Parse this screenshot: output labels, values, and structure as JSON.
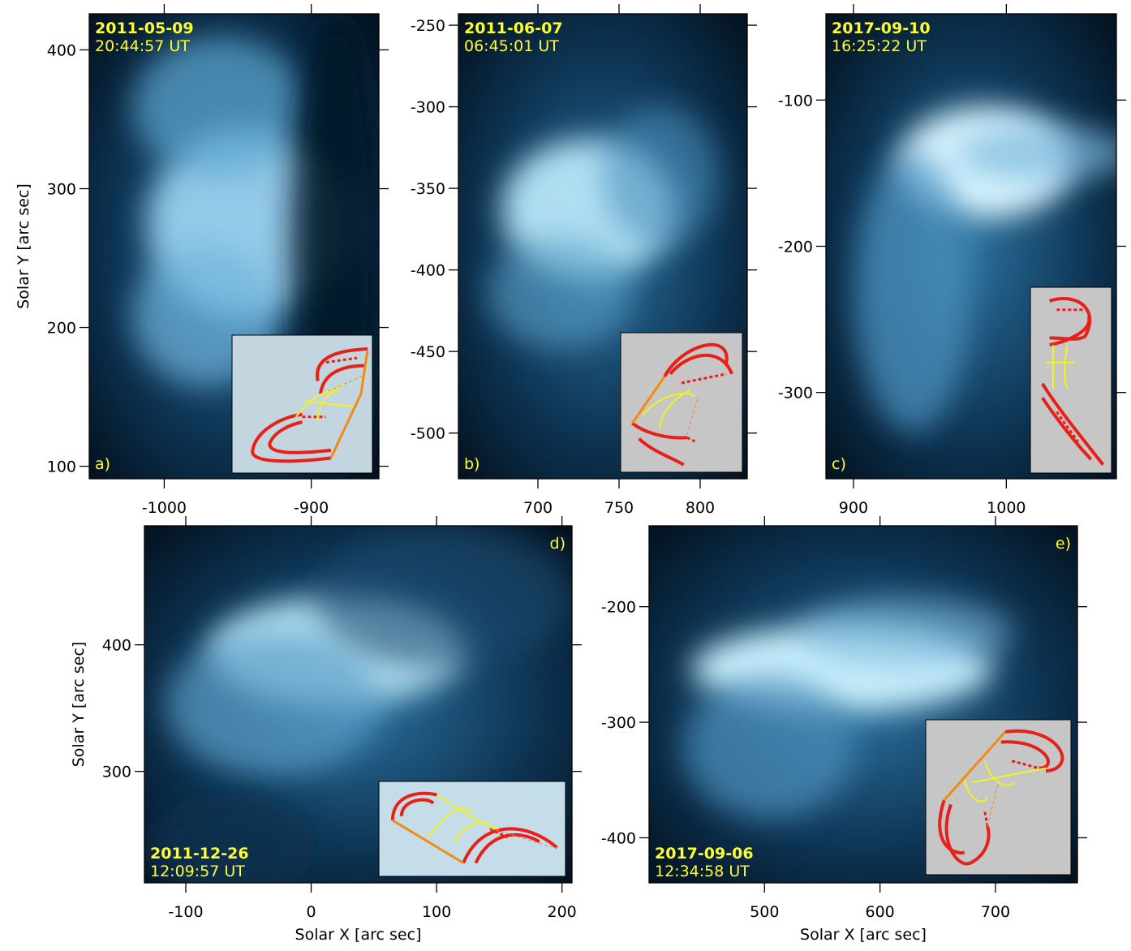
{
  "panels": [
    {
      "letter": "a)",
      "date": "2011-05-09",
      "time": "20:44:57 UT",
      "xlim": [
        -1051,
        -854
      ],
      "ylim": [
        91,
        426
      ],
      "xticks": [
        -1000,
        -900
      ],
      "yticks": [
        100,
        200,
        300,
        400
      ],
      "y_label": "Solar Y [arc sec]"
    },
    {
      "letter": "b)",
      "date": "2011-06-07",
      "time": "06:45:01 UT",
      "xlim": [
        651,
        829
      ],
      "ylim": [
        -528,
        -243
      ],
      "xticks": [
        700,
        750,
        800
      ],
      "yticks": [
        -500,
        -450,
        -400,
        -350,
        -300,
        -250
      ]
    },
    {
      "letter": "c)",
      "date": "2017-09-10",
      "time": "16:25:22 UT",
      "xlim": [
        882,
        1072
      ],
      "ylim": [
        -359,
        -41
      ],
      "xticks": [
        900,
        1000
      ],
      "yticks": [
        -300,
        -200,
        -100
      ]
    },
    {
      "letter": "d)",
      "date": "2011-12-26",
      "time": "12:09:57 UT",
      "xlim": [
        -133,
        208
      ],
      "ylim": [
        212,
        494
      ],
      "xticks": [
        -100,
        0,
        100,
        200
      ],
      "yticks": [
        300,
        400
      ],
      "x_label": "Solar X [arc sec]",
      "y_label": "Solar Y [arc sec]"
    },
    {
      "letter": "e)",
      "date": "2017-09-06",
      "time": "12:34:58 UT",
      "xlim": [
        400,
        771
      ],
      "ylim": [
        -439,
        -130
      ],
      "xticks": [
        500,
        600,
        700
      ],
      "yticks": [
        -400,
        -300,
        -200
      ],
      "x_label": "Solar X [arc sec]"
    }
  ]
}
